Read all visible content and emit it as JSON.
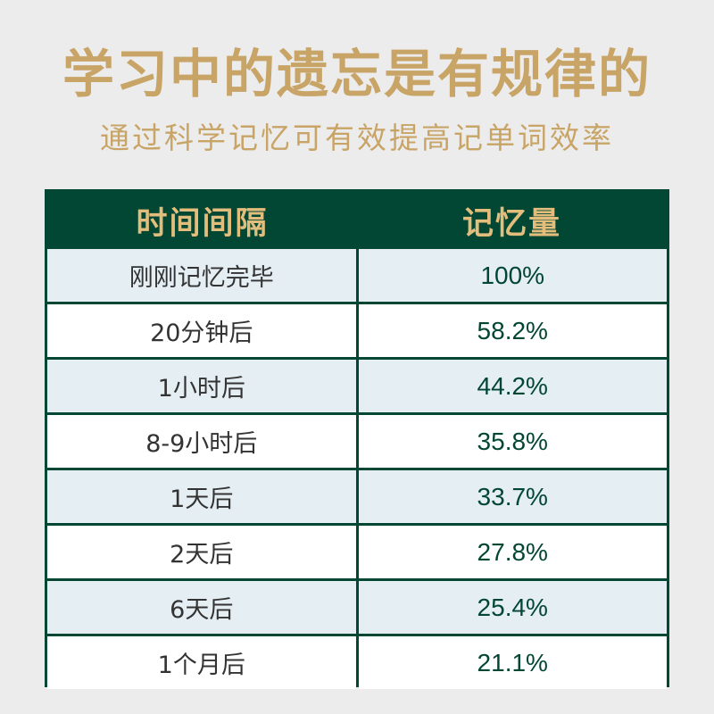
{
  "header": {
    "title": "学习中的遗忘是有规律的",
    "subtitle": "通过科学记忆可有效提高记单词效率"
  },
  "colors": {
    "background": "#ececec",
    "accent_gold": "#c8a467",
    "table_green": "#024634",
    "row_light_blue": "#e4eef3",
    "row_white": "#ffffff"
  },
  "chart_data": {
    "type": "table",
    "columns": [
      "时间间隔",
      "记忆量"
    ],
    "rows": [
      [
        "刚刚记忆完毕",
        "100%"
      ],
      [
        "20分钟后",
        "58.2%"
      ],
      [
        "1小时后",
        "44.2%"
      ],
      [
        "8-9小时后",
        "35.8%"
      ],
      [
        "1天后",
        "33.7%"
      ],
      [
        "2天后",
        "27.8%"
      ],
      [
        "6天后",
        "25.4%"
      ],
      [
        "1个月后",
        "21.1%"
      ]
    ]
  }
}
